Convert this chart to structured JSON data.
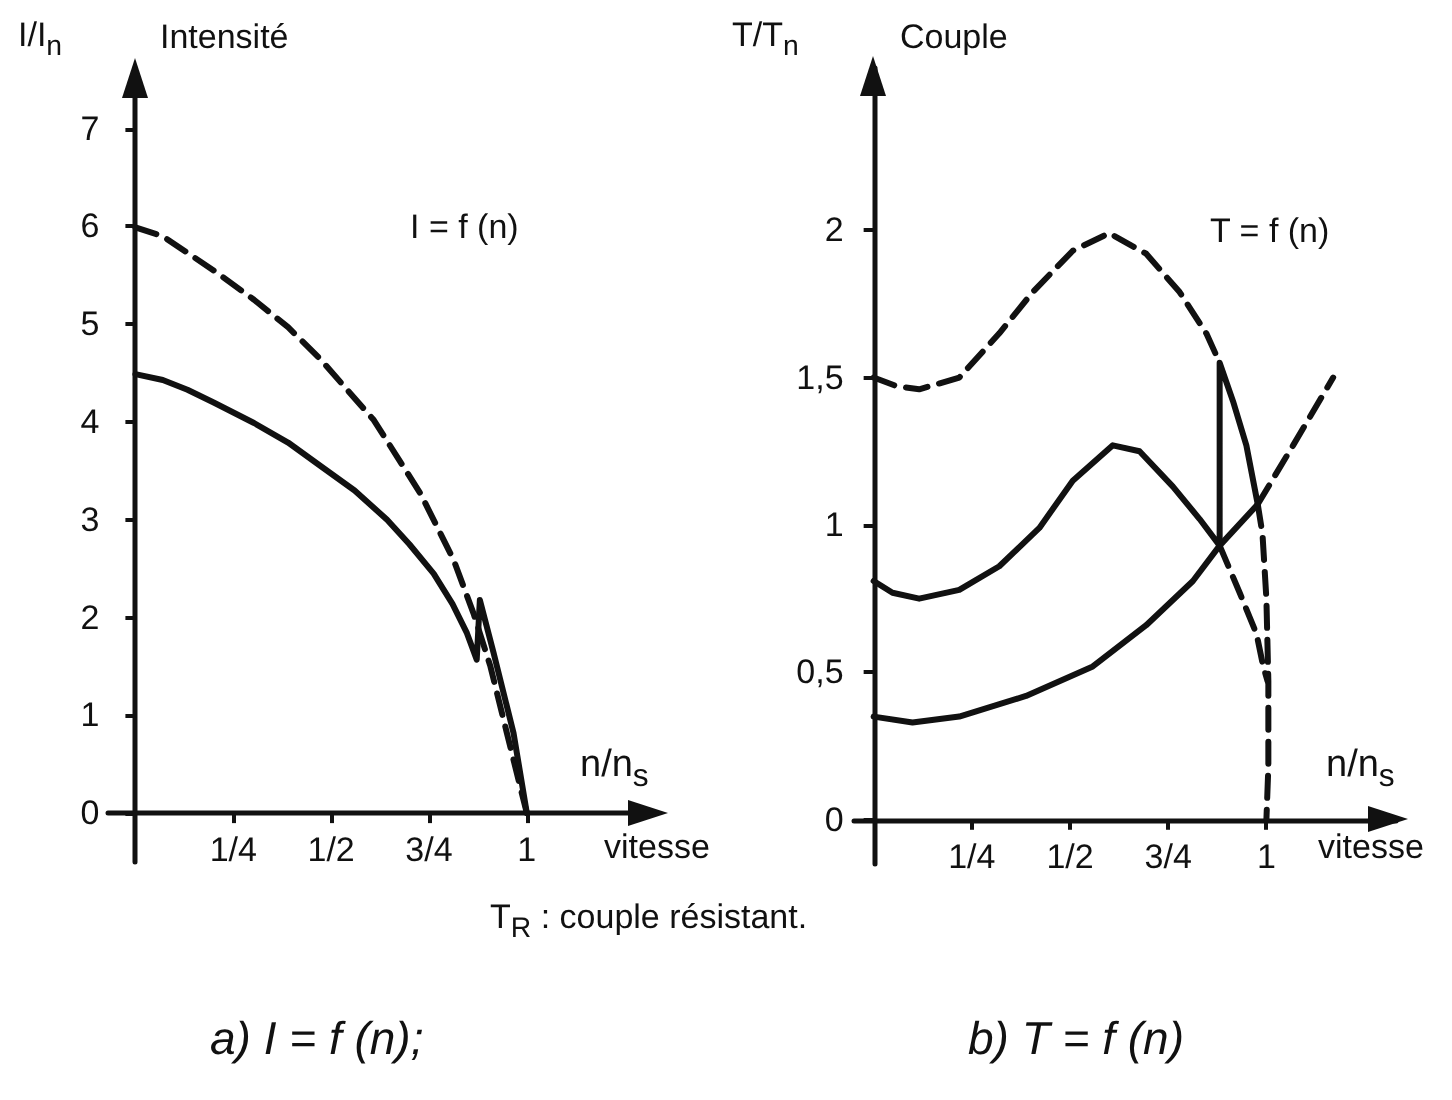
{
  "chart_data": [
    {
      "type": "line",
      "title": "a) I = f (n);",
      "xlabel": "n/n$_{s}$",
      "ylabel": "I/I$_{n}$",
      "annotations": [
        "Intensité",
        "I = f (n)",
        "vitesse"
      ],
      "xlim": [
        -0.07,
        1.33
      ],
      "ylim": [
        -0.5,
        7.6
      ],
      "xticks": [
        {
          "value": 0.25,
          "label": "1/4"
        },
        {
          "value": 0.5,
          "label": "1/2"
        },
        {
          "value": 0.75,
          "label": "3/4"
        },
        1
      ],
      "yticks": [
        0,
        1,
        2,
        3,
        4,
        5,
        6,
        7
      ],
      "series": [
        {
          "color": "#111111",
          "line_style": "dashed",
          "x": [
            0,
            0.07,
            0.133,
            0.2,
            0.303,
            0.39,
            0.473,
            0.609,
            0.728,
            0.813,
            0.864,
            0.907,
            0.949,
            0.983,
            1.0
          ],
          "values": [
            5.99,
            5.9,
            5.73,
            5.55,
            5.25,
            4.97,
            4.64,
            4.02,
            3.27,
            2.59,
            2.04,
            1.5,
            0.82,
            0.27,
            0
          ]
        },
        {
          "color": "#111111",
          "line_style": "solid",
          "x": [
            0,
            0.07,
            0.133,
            0.2,
            0.303,
            0.39,
            0.473,
            0.56,
            0.643,
            0.7,
            0.762,
            0.81,
            0.847,
            0.872,
            0.88,
            0.915,
            0.966,
            1.0
          ],
          "values": [
            4.49,
            4.43,
            4.33,
            4.2,
            3.99,
            3.79,
            3.55,
            3.3,
            3.0,
            2.75,
            2.45,
            2.14,
            1.84,
            1.57,
            2.18,
            1.64,
            0.82,
            0
          ]
        }
      ]
    },
    {
      "type": "line",
      "title": "b) T = f (n)",
      "xlabel": "n/n$_{s}$",
      "ylabel": "T/T$_{n}$",
      "annotations": [
        "Couple",
        "T = f (n)",
        "vitesse",
        "T$_{R}$ : couple résistant."
      ],
      "xlim": [
        -0.05,
        1.33
      ],
      "ylim": [
        -0.15,
        2.55
      ],
      "xticks": [
        {
          "value": 0.25,
          "label": "1/4"
        },
        {
          "value": 0.5,
          "label": "1/2"
        },
        {
          "value": 0.75,
          "label": "3/4"
        },
        1
      ],
      "yticks": [
        0,
        {
          "value": 0.5,
          "label": "0,5"
        },
        1,
        {
          "value": 1.5,
          "label": "1,5"
        },
        2
      ],
      "series": [
        {
          "color": "#111111",
          "line_style": "dashed",
          "x": [
            0,
            0.06,
            0.116,
            0.218,
            0.32,
            0.405,
            0.507,
            0.6,
            0.694,
            0.779,
            0.847,
            0.881,
            0.93,
            0.978,
            0.99,
            1.0,
            1.005,
            1.005,
            1.0
          ],
          "values": [
            1.5,
            1.47,
            1.46,
            1.5,
            1.65,
            1.79,
            1.93,
            1.99,
            1.92,
            1.79,
            1.65,
            1.55,
            null,
            1.07,
            0.97,
            0.75,
            0.47,
            0.18,
            0
          ]
        },
        {
          "color": "#111111",
          "line_style": "dashed",
          "x": [
            0.881,
            0.932,
            0.975,
            0.992,
            1.003
          ],
          "values": [
            0.93,
            0.77,
            0.63,
            0.52,
            0.47
          ]
        },
        {
          "color": "#111111",
          "line_style": "dashed",
          "x": [
            0.978,
            1.068,
            1.17
          ],
          "values": [
            1.07,
            1.27,
            1.5
          ]
        },
        {
          "color": "#111111",
          "line_style": "solid",
          "x": [
            0,
            0.099,
            0.218,
            0.388,
            0.558,
            0.694,
            0.813,
            0.881,
            0.978
          ],
          "values": [
            0.35,
            0.33,
            0.35,
            0.42,
            0.52,
            0.66,
            0.81,
            0.93,
            1.07
          ]
        },
        {
          "color": "#111111",
          "line_style": "solid",
          "x": [
            0,
            0.048,
            0.116,
            0.218,
            0.32,
            0.422,
            0.507,
            0.609,
            0.677,
            0.762,
            0.83,
            0.881,
            0.881,
            0.915,
            0.949,
            0.978
          ],
          "values": [
            0.81,
            0.77,
            0.75,
            0.78,
            0.86,
            0.99,
            1.15,
            1.27,
            1.25,
            1.13,
            1.02,
            0.93,
            1.55,
            1.42,
            1.27,
            1.07
          ]
        }
      ]
    }
  ]
}
